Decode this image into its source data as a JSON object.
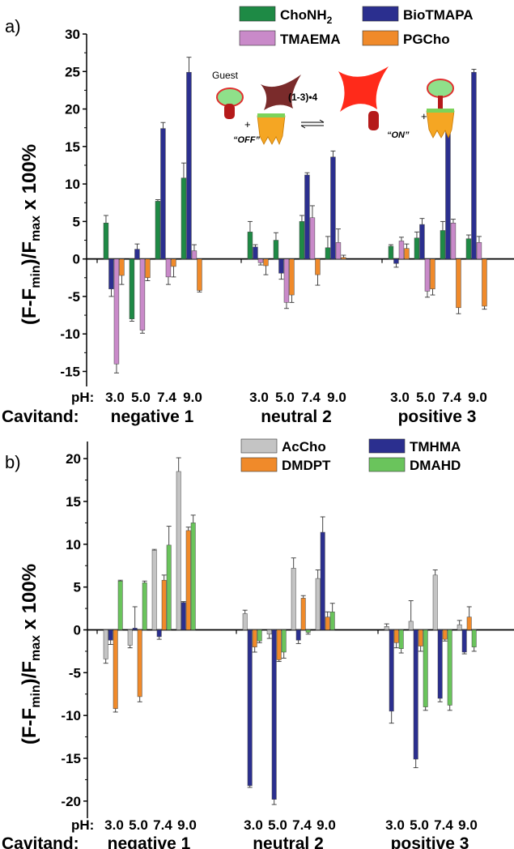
{
  "chart_data": [
    {
      "panel_label": "a)",
      "type": "bar",
      "ylabel": "(F-F_min)/F_max x 100%",
      "ylim": [
        -17,
        30
      ],
      "yticks": [
        30,
        25,
        20,
        15,
        10,
        5,
        0,
        -5,
        -10,
        -15
      ],
      "row_labels": {
        "ph": "pH:",
        "cavitand": "Cavitand:"
      },
      "groups": [
        {
          "name": "negative 1",
          "ph": [
            "3.0",
            "5.0",
            "7.4",
            "9.0"
          ]
        },
        {
          "name": "neutral 2",
          "ph": [
            "3.0",
            "5.0",
            "7.4",
            "9.0"
          ]
        },
        {
          "name": "positive 3",
          "ph": [
            "3.0",
            "5.0",
            "7.4",
            "9.0"
          ]
        }
      ],
      "series": [
        {
          "name": "ChoNH2",
          "legend_main": "ChoNH",
          "legend_sub": "2",
          "color": "#1e8a45",
          "values": [
            4.8,
            -8.0,
            7.7,
            10.8,
            3.6,
            2.5,
            5.0,
            1.5,
            1.7,
            2.8,
            3.8,
            2.7
          ],
          "errors": [
            1.0,
            0.3,
            0.2,
            2.0,
            1.4,
            1.0,
            0.8,
            1.5,
            0.2,
            0.8,
            1.2,
            0.5
          ]
        },
        {
          "name": "BioTMAPA",
          "legend_main": "BioTMAPA",
          "legend_sub": "",
          "color": "#2b2f8f",
          "values": [
            -4.0,
            1.3,
            17.4,
            24.9,
            1.6,
            -1.9,
            11.2,
            13.6,
            -0.6,
            4.6,
            18.7,
            24.9
          ],
          "errors": [
            1.0,
            0.7,
            0.8,
            2.0,
            0.3,
            0.8,
            0.3,
            0.8,
            0.5,
            0.8,
            1.2,
            0.4
          ]
        },
        {
          "name": "TMAEMA",
          "legend_main": "TMAEMA",
          "legend_sub": "",
          "color": "#c98ac9",
          "values": [
            -14.0,
            -9.5,
            -2.4,
            1.1,
            -0.5,
            -5.8,
            5.5,
            2.2,
            2.4,
            -4.3,
            4.8,
            2.2
          ],
          "errors": [
            1.2,
            0.4,
            1.0,
            0.8,
            0.3,
            0.8,
            1.6,
            1.8,
            0.5,
            0.8,
            0.5,
            0.8
          ]
        },
        {
          "name": "PGCho",
          "legend_main": "PGCho",
          "legend_sub": "",
          "color": "#f08a2a",
          "values": [
            -2.2,
            -2.5,
            -1.0,
            -4.2,
            -0.9,
            -4.8,
            -2.1,
            0.2,
            1.4,
            -4.0,
            -6.5,
            -6.3
          ],
          "errors": [
            1.2,
            0.4,
            1.4,
            0.2,
            1.2,
            1.0,
            1.4,
            0.3,
            0.6,
            0.8,
            0.8,
            0.4
          ]
        }
      ],
      "inset": {
        "guest": "Guest",
        "complex": "(1-3)•4",
        "off": "“OFF”",
        "on": "“ON”",
        "plus1": "+",
        "plus2": "+"
      }
    },
    {
      "panel_label": "b)",
      "type": "bar",
      "ylabel": "(F-F_min)/F_max x 100%",
      "ylim": [
        -22,
        22
      ],
      "yticks": [
        20,
        15,
        10,
        5,
        0,
        -5,
        -10,
        -15,
        -20
      ],
      "row_labels": {
        "ph": "pH:",
        "cavitand": "Cavitand:"
      },
      "groups": [
        {
          "name": "negative 1",
          "ph": [
            "3.0",
            "5.0",
            "7.4",
            "9.0"
          ]
        },
        {
          "name": "neutral 2",
          "ph": [
            "3.0",
            "5.0",
            "7.4",
            "9.0"
          ]
        },
        {
          "name": "positive 3",
          "ph": [
            "3.0",
            "5.0",
            "7.4",
            "9.0"
          ]
        }
      ],
      "series": [
        {
          "name": "AcCho",
          "legend_main": "AcCho",
          "legend_sub": "",
          "color": "#c4c4c4",
          "values": [
            -3.4,
            -1.8,
            9.3,
            18.5,
            1.9,
            -0.5,
            7.2,
            6.0,
            0.4,
            1.0,
            6.4,
            0.6
          ],
          "errors": [
            0.5,
            0.3,
            0.1,
            1.6,
            0.4,
            0.5,
            1.2,
            1.0,
            0.3,
            2.4,
            0.6,
            0.5
          ]
        },
        {
          "name": "TMHMA",
          "legend_main": "TMHMA",
          "legend_sub": "",
          "color": "#2b2f8f",
          "values": [
            -1.2,
            0.2,
            -0.8,
            3.2,
            -18.2,
            -19.8,
            -1.2,
            11.4,
            -9.5,
            -15.1,
            -8.0,
            -2.6
          ],
          "errors": [
            0.5,
            2.5,
            0.3,
            0.1,
            0.2,
            0.6,
            0.4,
            1.8,
            1.4,
            1.0,
            0.4,
            0.2
          ]
        },
        {
          "name": "DMDPT",
          "legend_main": "DMDPT",
          "legend_sub": "",
          "color": "#f08a2a",
          "values": [
            -9.2,
            -7.8,
            5.8,
            11.6,
            -2.0,
            -3.5,
            3.7,
            1.5,
            -1.5,
            -1.9,
            -1.1,
            1.5
          ],
          "errors": [
            0.4,
            0.6,
            0.6,
            0.4,
            0.6,
            0.2,
            0.3,
            0.6,
            0.6,
            0.6,
            0.2,
            1.2
          ]
        },
        {
          "name": "DMAHD",
          "legend_main": "DMAHD",
          "legend_sub": "",
          "color": "#6ac45c",
          "values": [
            5.7,
            5.5,
            9.9,
            12.5,
            -1.3,
            -2.6,
            -0.3,
            2.1,
            -2.2,
            -9.0,
            -8.8,
            -2.0
          ],
          "errors": [
            0.1,
            0.2,
            2.2,
            0.9,
            0.2,
            0.7,
            0.2,
            1.0,
            0.5,
            0.4,
            0.6,
            0.5
          ]
        }
      ]
    }
  ]
}
